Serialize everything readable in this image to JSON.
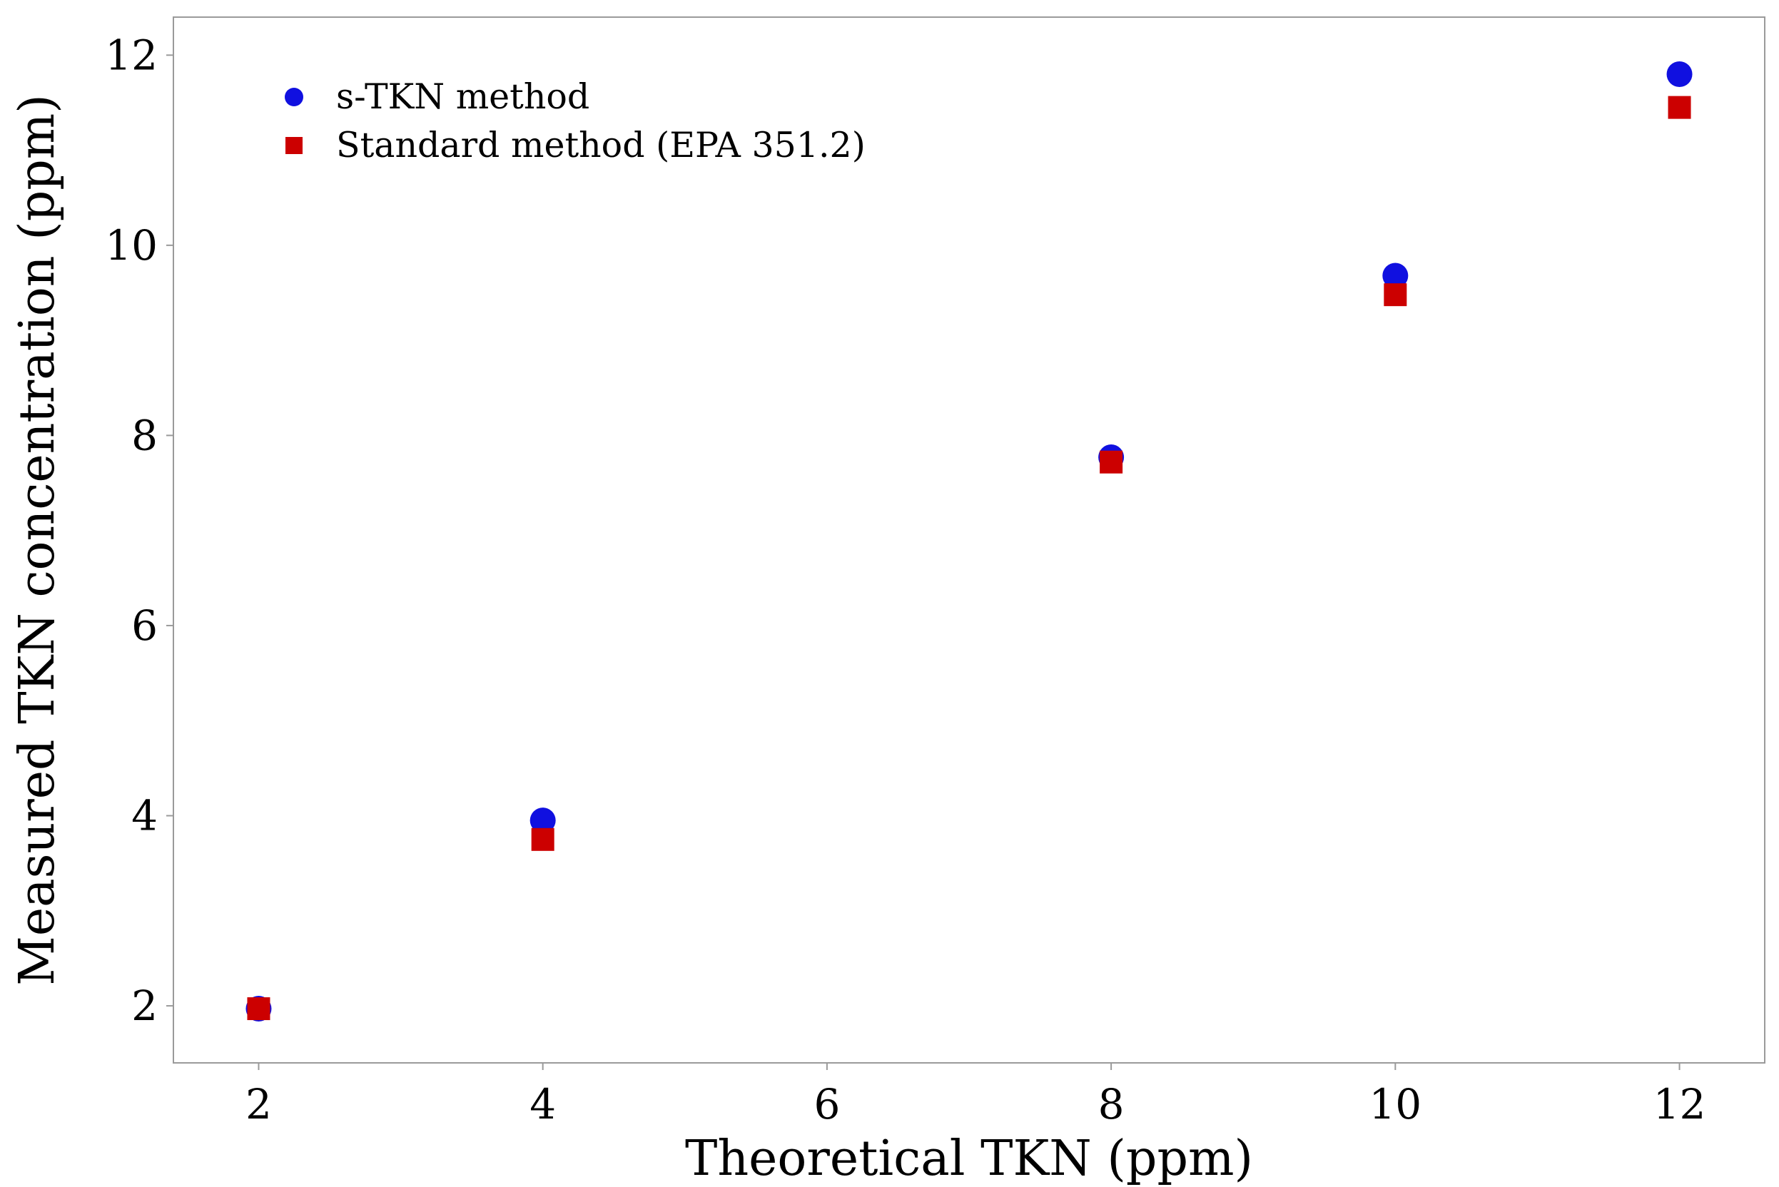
{
  "chart_data": {
    "type": "scatter",
    "xlabel": "Theoretical TKN (ppm)",
    "ylabel": "Measured TKN concentration (ppm)",
    "xlim": [
      1.4,
      12.6
    ],
    "ylim": [
      1.4,
      12.4
    ],
    "xticks": [
      2,
      4,
      6,
      8,
      10,
      12
    ],
    "yticks": [
      2,
      4,
      6,
      8,
      10,
      12
    ],
    "x_tick_labels": [
      "2",
      "4",
      "6",
      "8",
      "10",
      "12"
    ],
    "y_tick_labels": [
      "2",
      "4",
      "6",
      "8",
      "10",
      "12"
    ],
    "grid": false,
    "legend_position": "top-left",
    "series": [
      {
        "name": "s-TKN method",
        "marker": "circle",
        "color": "#1010e0",
        "x": [
          2,
          4,
          8,
          10,
          12
        ],
        "y": [
          1.97,
          3.95,
          7.77,
          9.68,
          11.8
        ]
      },
      {
        "name": "Standard method (EPA 351.2)",
        "marker": "square",
        "color": "#cc0000",
        "x": [
          2,
          4,
          8,
          10,
          12
        ],
        "y": [
          1.97,
          3.75,
          7.72,
          9.48,
          11.45
        ]
      }
    ]
  }
}
